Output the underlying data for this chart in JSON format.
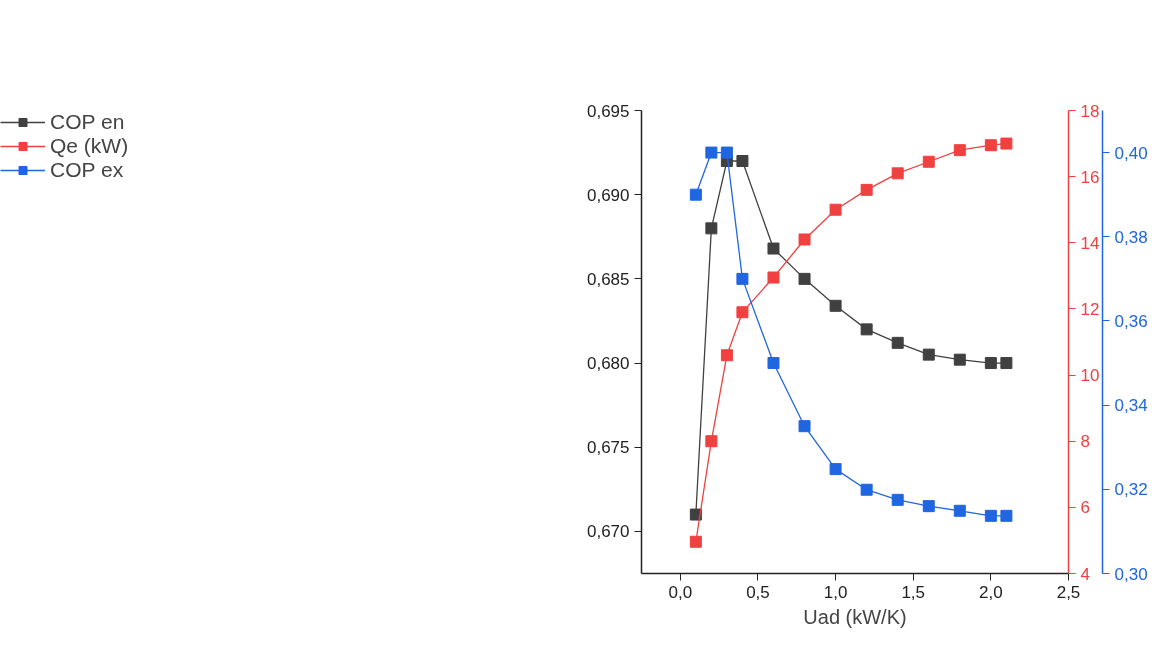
{
  "chart_data": {
    "type": "line",
    "xlabel": "Uad (kW/K)",
    "marker": "square",
    "line_style": "solid",
    "grid": false,
    "legend": "top left",
    "x": [
      0.1,
      0.2,
      0.3,
      0.4,
      0.6,
      0.8,
      1.0,
      1.2,
      1.4,
      1.6,
      1.8,
      2.0,
      2.1
    ],
    "xlim": [
      -0.25,
      2.5
    ],
    "xticks": [
      {
        "value": 0,
        "label": "0,0"
      },
      {
        "value": 0.5,
        "label": "0,5"
      },
      {
        "value": 1,
        "label": "1,0"
      },
      {
        "value": 1.5,
        "label": "1,5"
      },
      {
        "value": 2,
        "label": "2,0"
      },
      {
        "value": 2.5,
        "label": "2,5"
      }
    ],
    "ylim": [
      0.6675,
      0.695
    ],
    "yticks": [
      {
        "value": 0.67,
        "label": "0,670"
      },
      {
        "value": 0.675,
        "label": "0,675"
      },
      {
        "value": 0.68,
        "label": "0,680"
      },
      {
        "value": 0.685,
        "label": "0,685"
      },
      {
        "value": 0.69,
        "label": "0,690"
      },
      {
        "value": 0.695,
        "label": "0,695"
      }
    ],
    "y2lim": [
      4,
      18
    ],
    "y2ticks": [
      4,
      6,
      8,
      10,
      12,
      14,
      16,
      18
    ],
    "y3lim": [
      0.3,
      0.41
    ],
    "y3ticks": [
      {
        "value": 0.3,
        "label": "0,30"
      },
      {
        "value": 0.32,
        "label": "0,32"
      },
      {
        "value": 0.34,
        "label": "0,34"
      },
      {
        "value": 0.36,
        "label": "0,36"
      },
      {
        "value": 0.38,
        "label": "0,38"
      },
      {
        "value": 0.4,
        "label": "0,40"
      }
    ],
    "series": [
      {
        "name": "COP en",
        "color": "#404040",
        "values": [
          0.671,
          0.688,
          0.692,
          0.692,
          0.6868,
          0.685,
          0.6834,
          0.682,
          0.6812,
          0.6805,
          0.6802,
          0.68,
          0.68
        ]
      },
      {
        "name": "Qe (kW)",
        "color": "#f04040",
        "axis": "y2",
        "values": [
          4.96,
          8.0,
          10.6,
          11.9,
          12.95,
          14.1,
          15.0,
          15.6,
          16.1,
          16.45,
          16.8,
          16.95,
          17.0
        ]
      },
      {
        "name": "COP ex",
        "color": "#1f66e0",
        "axis": "y3",
        "values": [
          0.39,
          0.4,
          0.4,
          0.37,
          0.35,
          0.335,
          0.3248,
          0.3199,
          0.3175,
          0.316,
          0.3149,
          0.3137,
          0.3137
        ]
      }
    ]
  }
}
